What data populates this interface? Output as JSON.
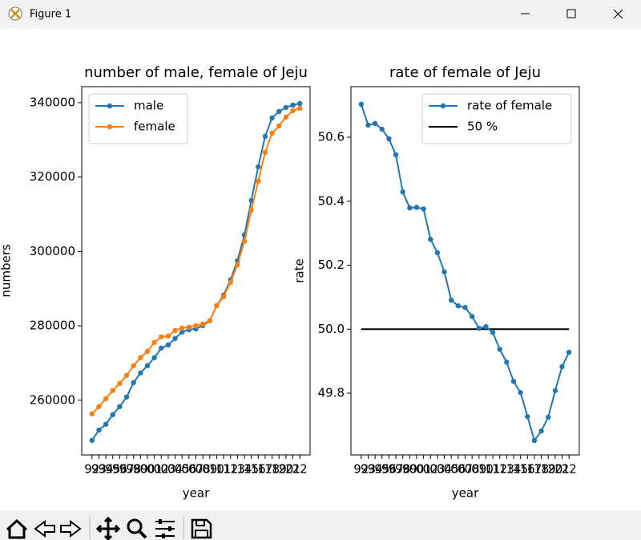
{
  "window": {
    "title": "Figure 1"
  },
  "chart_data": [
    {
      "type": "line",
      "title": "number of male, female of Jeju",
      "xlabel": "year",
      "ylabel": "numbers",
      "categories": [
        "92",
        "93",
        "94",
        "95",
        "96",
        "97",
        "98",
        "99",
        "00",
        "01",
        "02",
        "03",
        "04",
        "05",
        "06",
        "07",
        "08",
        "09",
        "10",
        "11",
        "12",
        "13",
        "14",
        "15",
        "16",
        "17",
        "18",
        "19",
        "20",
        "21",
        "22"
      ],
      "series": [
        {
          "name": "male",
          "color": "#1f77b4",
          "values": [
            249230,
            252000,
            253550,
            256130,
            258290,
            260870,
            264750,
            267340,
            269280,
            271440,
            274030,
            274890,
            276610,
            278340,
            278990,
            279200,
            280060,
            281350,
            285450,
            288250,
            292350,
            297530,
            304430,
            313700,
            322750,
            330940,
            335900,
            337630,
            338710,
            339350,
            339780
          ]
        },
        {
          "name": "female",
          "color": "#ff7f0e",
          "values": [
            256350,
            258290,
            260440,
            262600,
            264540,
            266700,
            269280,
            271440,
            273160,
            275540,
            277050,
            277260,
            278770,
            279420,
            279630,
            280060,
            280490,
            281350,
            285450,
            287820,
            291700,
            296450,
            302700,
            311110,
            318870,
            326630,
            331810,
            333750,
            336120,
            337840,
            338490
          ]
        }
      ],
      "ylim": [
        245300,
        344300
      ],
      "yticks": [
        260000,
        280000,
        300000,
        320000,
        340000
      ],
      "legend": "upper left"
    },
    {
      "type": "line",
      "title": "rate of female of Jeju",
      "xlabel": "year",
      "ylabel": "rate",
      "categories": [
        "92",
        "93",
        "94",
        "95",
        "96",
        "97",
        "98",
        "99",
        "00",
        "01",
        "02",
        "03",
        "04",
        "05",
        "06",
        "07",
        "08",
        "09",
        "10",
        "11",
        "12",
        "13",
        "14",
        "15",
        "16",
        "17",
        "18",
        "19",
        "20",
        "21",
        "22"
      ],
      "series": [
        {
          "name": "rate of female",
          "color": "#1f77b4",
          "values": [
            50.703,
            50.638,
            50.643,
            50.625,
            50.595,
            50.545,
            50.429,
            50.379,
            50.381,
            50.376,
            50.281,
            50.239,
            50.179,
            50.091,
            50.073,
            50.068,
            50.04,
            50.003,
            50.008,
            49.99,
            49.937,
            49.897,
            49.837,
            49.802,
            49.727,
            49.652,
            49.682,
            49.725,
            49.808,
            49.883,
            49.928
          ]
        }
      ],
      "hline": {
        "name": "50 %",
        "value": 50,
        "color": "#000000"
      },
      "ylim": [
        49.607,
        50.758
      ],
      "yticks": [
        49.8,
        {
          "value": 50,
          "label": "50.0"
        },
        50.2,
        50.4,
        50.6
      ],
      "legend": "upper right"
    }
  ]
}
